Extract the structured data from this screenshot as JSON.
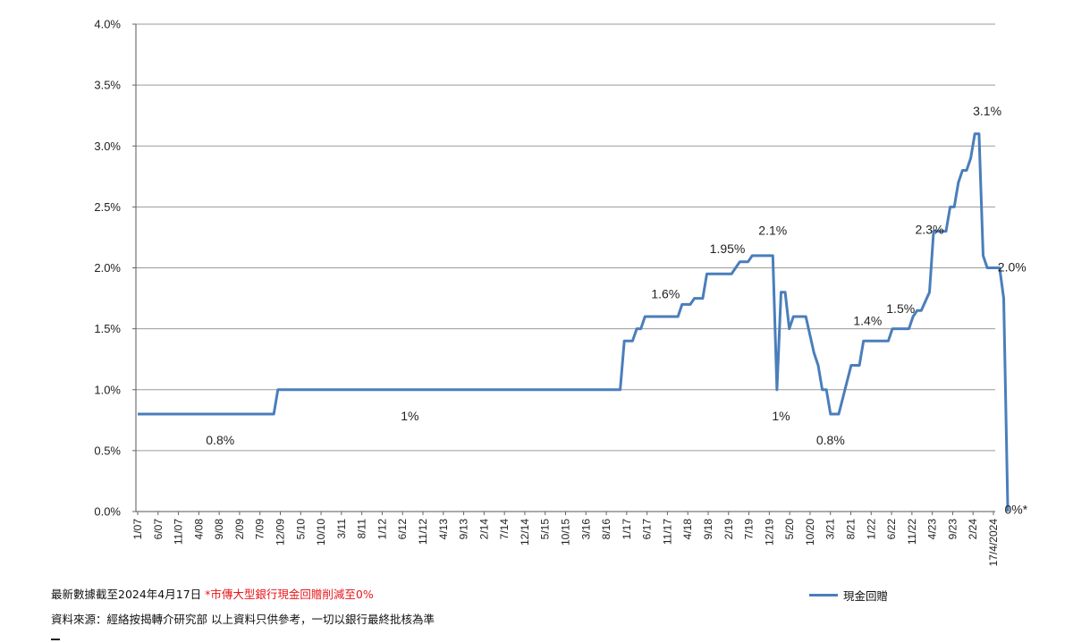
{
  "chart_data": {
    "type": "line",
    "title": "",
    "xlabel": "",
    "ylabel": "",
    "ylim": [
      0,
      0.04
    ],
    "y_ticks": [
      "0.0%",
      "0.5%",
      "1.0%",
      "1.5%",
      "2.0%",
      "2.5%",
      "3.0%",
      "3.5%",
      "4.0%"
    ],
    "x_ticks": [
      "1/07",
      "6/07",
      "11/07",
      "4/08",
      "9/08",
      "2/09",
      "7/09",
      "12/09",
      "5/10",
      "10/10",
      "3/11",
      "8/11",
      "1/12",
      "6/12",
      "11/12",
      "4/13",
      "9/13",
      "2/14",
      "7/14",
      "12/14",
      "5/15",
      "10/15",
      "3/16",
      "8/16",
      "1/17",
      "6/17",
      "11/17",
      "4/18",
      "9/18",
      "2/19",
      "7/19",
      "12/19",
      "5/20",
      "10/20",
      "3/21",
      "8/21",
      "1/22",
      "6/22",
      "11/22",
      "4/23",
      "9/23",
      "2/24",
      "17/4/2024"
    ],
    "grid": true,
    "legend_position": "bottom-right",
    "series": [
      {
        "name": "現金回贈",
        "color": "#4a7ebb",
        "points": [
          [
            "2007-01",
            0.008
          ],
          [
            "2009-10",
            0.008
          ],
          [
            "2009-11",
            0.01
          ],
          [
            "2016-10",
            0.01
          ],
          [
            "2016-11",
            0.014
          ],
          [
            "2017-01",
            0.014
          ],
          [
            "2017-02",
            0.015
          ],
          [
            "2017-03",
            0.015
          ],
          [
            "2017-04",
            0.016
          ],
          [
            "2017-12",
            0.016
          ],
          [
            "2018-01",
            0.017
          ],
          [
            "2018-03",
            0.017
          ],
          [
            "2018-04",
            0.0175
          ],
          [
            "2018-06",
            0.0175
          ],
          [
            "2018-07",
            0.0195
          ],
          [
            "2019-01",
            0.0195
          ],
          [
            "2019-02",
            0.02
          ],
          [
            "2019-03",
            0.0205
          ],
          [
            "2019-05",
            0.0205
          ],
          [
            "2019-06",
            0.021
          ],
          [
            "2019-11",
            0.021
          ],
          [
            "2019-12",
            0.01
          ],
          [
            "2020-01",
            0.018
          ],
          [
            "2020-02",
            0.018
          ],
          [
            "2020-03",
            0.015
          ],
          [
            "2020-04",
            0.016
          ],
          [
            "2020-07",
            0.016
          ],
          [
            "2020-09",
            0.013
          ],
          [
            "2020-10",
            0.012
          ],
          [
            "2020-11",
            0.01
          ],
          [
            "2020-12",
            0.01
          ],
          [
            "2021-01",
            0.008
          ],
          [
            "2021-03",
            0.008
          ],
          [
            "2021-06",
            0.012
          ],
          [
            "2021-08",
            0.012
          ],
          [
            "2021-09",
            0.014
          ],
          [
            "2022-03",
            0.014
          ],
          [
            "2022-04",
            0.015
          ],
          [
            "2022-08",
            0.015
          ],
          [
            "2022-09",
            0.016
          ],
          [
            "2022-10",
            0.0165
          ],
          [
            "2022-11",
            0.0165
          ],
          [
            "2023-01",
            0.018
          ],
          [
            "2023-02",
            0.023
          ],
          [
            "2023-05",
            0.023
          ],
          [
            "2023-06",
            0.025
          ],
          [
            "2023-07",
            0.025
          ],
          [
            "2023-08",
            0.027
          ],
          [
            "2023-09",
            0.028
          ],
          [
            "2023-10",
            0.028
          ],
          [
            "2023-11",
            0.029
          ],
          [
            "2023-12",
            0.031
          ],
          [
            "2024-01",
            0.031
          ],
          [
            "2024-02",
            0.021
          ],
          [
            "2024-03",
            0.02
          ],
          [
            "2024-06",
            0.02
          ],
          [
            "2024-07",
            0.0175
          ],
          [
            "2024-08",
            0.0
          ]
        ]
      }
    ],
    "annotations": [
      {
        "text": "0.8%",
        "x": "2008-09",
        "y": 0.0055
      },
      {
        "text": "1%",
        "x": "2012-07",
        "y": 0.0075
      },
      {
        "text": "1.6%",
        "x": "2017-09",
        "y": 0.0175
      },
      {
        "text": "1.95%",
        "x": "2018-12",
        "y": 0.0212
      },
      {
        "text": "2.1%",
        "x": "2019-11",
        "y": 0.0227
      },
      {
        "text": "1%",
        "x": "2020-01",
        "y": 0.0075
      },
      {
        "text": "0.8%",
        "x": "2021-01",
        "y": 0.0055
      },
      {
        "text": "1.4%",
        "x": "2021-10",
        "y": 0.0153
      },
      {
        "text": "1.5%",
        "x": "2022-06",
        "y": 0.0163
      },
      {
        "text": "2.3%",
        "x": "2023-01",
        "y": 0.0228
      },
      {
        "text": "3.1%",
        "x": "2024-03",
        "y": 0.0325
      },
      {
        "text": "2.0%",
        "x": "2024-09",
        "y": 0.0197
      },
      {
        "text": "0%*",
        "x": "2024-10",
        "y": -0.0002,
        "color": "#e8161b"
      }
    ]
  },
  "notes": {
    "line1_prefix": "最新數據截至2024年4月17日 ",
    "line1_red": "*市傳大型銀行現金回贈削減至0%",
    "line2": "資料來源：經絡按揭轉介研究部  以上資料只供參考，一切以銀行最終批核為準"
  },
  "legend": {
    "label": "現金回贈"
  }
}
